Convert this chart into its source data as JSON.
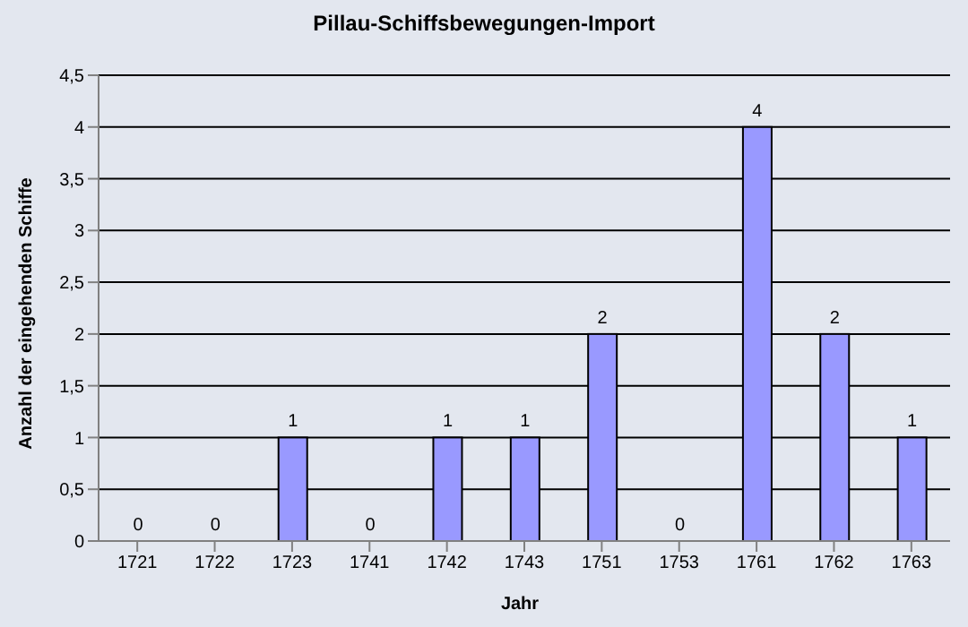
{
  "chart_data": {
    "type": "bar",
    "title": "Pillau-Schiffsbewegungen-Import",
    "xlabel": "Jahr",
    "ylabel": "Anzahl der eingehenden Schiffe",
    "categories": [
      "1721",
      "1722",
      "1723",
      "1741",
      "1742",
      "1743",
      "1751",
      "1753",
      "1761",
      "1762",
      "1763"
    ],
    "values": [
      0,
      0,
      1,
      0,
      1,
      1,
      2,
      0,
      4,
      2,
      1
    ],
    "color": "#9999ff",
    "ylim": [
      0,
      4.5
    ],
    "yticks": [
      0,
      {
        "value": 0.5,
        "label": "0,5"
      },
      1,
      {
        "value": 1.5,
        "label": "1,5"
      },
      2,
      {
        "value": 2.5,
        "label": "2,5"
      },
      3,
      {
        "value": 3.5,
        "label": "3,5"
      },
      4,
      {
        "value": 4.5,
        "label": "4,5"
      }
    ],
    "grid": "y",
    "data_labels": true,
    "legend": false
  }
}
